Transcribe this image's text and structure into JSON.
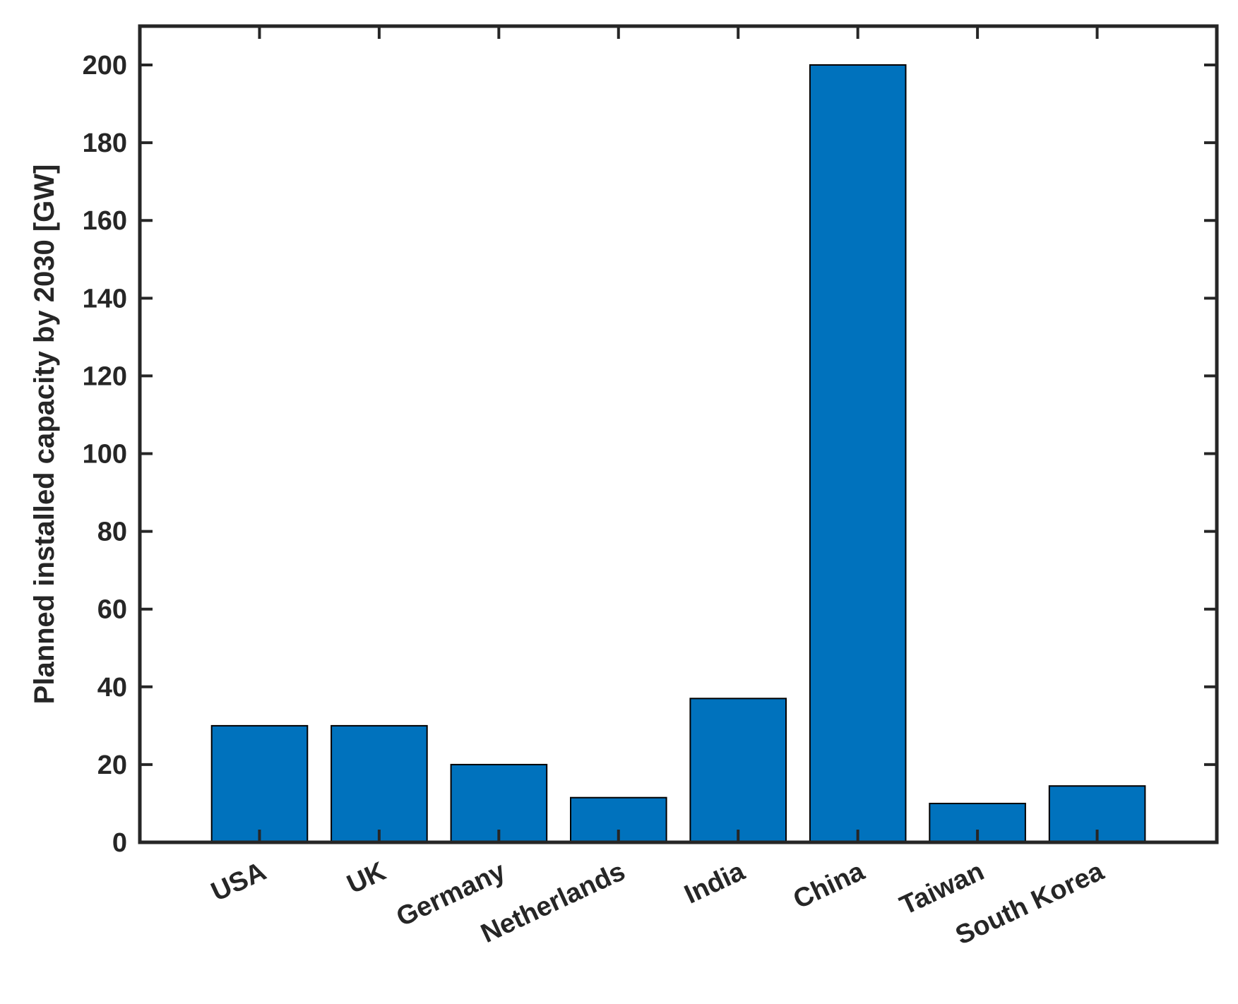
{
  "chart_data": {
    "type": "bar",
    "title": "",
    "xlabel": "",
    "ylabel": "Planned installed capacity by 2030 [GW]",
    "categories": [
      "USA",
      "UK",
      "Germany",
      "Netherlands",
      "India",
      "China",
      "Taiwan",
      "South Korea"
    ],
    "values": [
      30,
      30,
      20,
      11.5,
      37,
      200,
      10,
      14.5
    ],
    "ylim": [
      0,
      210
    ],
    "yticks": [
      0,
      20,
      40,
      60,
      80,
      100,
      120,
      140,
      160,
      180,
      200
    ],
    "xlim": [
      0,
      9
    ],
    "grid": false,
    "legend": "none",
    "colors": {
      "bar_fill": "#0072BD",
      "bar_edge": "#000000",
      "axis": "#262626",
      "text": "#262626"
    }
  }
}
